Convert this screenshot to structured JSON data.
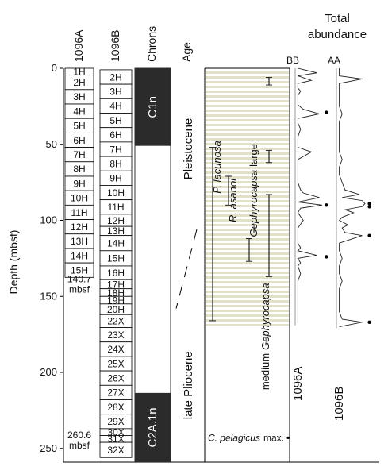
{
  "chart_data": {
    "type": "core-log",
    "y_label": "Depth (mbsf)",
    "ylim": [
      0,
      259
    ],
    "yticks": [
      0,
      50,
      100,
      150,
      200,
      250
    ],
    "column_titles": [
      "1096A",
      "1096B",
      "Chrons",
      "Age"
    ],
    "holes": [
      {
        "name": "1096A",
        "total_depth": {
          "value": 140.7,
          "label": "140.7 mbsf"
        },
        "cores": [
          {
            "label": "1H",
            "top": 0,
            "bottom": 4.5
          },
          {
            "label": "2H",
            "top": 4.5,
            "bottom": 14
          },
          {
            "label": "3H",
            "top": 14,
            "bottom": 23.5
          },
          {
            "label": "4H",
            "top": 23.5,
            "bottom": 33
          },
          {
            "label": "5H",
            "top": 33,
            "bottom": 42.5
          },
          {
            "label": "6H",
            "top": 42.5,
            "bottom": 52
          },
          {
            "label": "7H",
            "top": 52,
            "bottom": 61.5
          },
          {
            "label": "8H",
            "top": 61.5,
            "bottom": 71
          },
          {
            "label": "9H",
            "top": 71,
            "bottom": 80.5
          },
          {
            "label": "10H",
            "top": 80.5,
            "bottom": 90
          },
          {
            "label": "11H",
            "top": 90,
            "bottom": 99.5
          },
          {
            "label": "12H",
            "top": 99.5,
            "bottom": 109
          },
          {
            "label": "13H",
            "top": 109,
            "bottom": 118.5
          },
          {
            "label": "14H",
            "top": 118.5,
            "bottom": 128
          },
          {
            "label": "15H",
            "top": 128,
            "bottom": 137.5
          }
        ]
      },
      {
        "name": "1096B",
        "total_depth": {
          "value": 260.6,
          "label": "260.6 mbsf"
        },
        "cores": [
          {
            "label": "2H",
            "top": 1,
            "bottom": 10.5
          },
          {
            "label": "3H",
            "top": 10.5,
            "bottom": 20
          },
          {
            "label": "4H",
            "top": 20,
            "bottom": 29.5
          },
          {
            "label": "5H",
            "top": 29.5,
            "bottom": 39
          },
          {
            "label": "6H",
            "top": 39,
            "bottom": 48.5
          },
          {
            "label": "7H",
            "top": 48.5,
            "bottom": 58
          },
          {
            "label": "8H",
            "top": 58,
            "bottom": 67.5
          },
          {
            "label": "9H",
            "top": 67.5,
            "bottom": 77
          },
          {
            "label": "10H",
            "top": 77,
            "bottom": 86.5
          },
          {
            "label": "11H",
            "top": 86.5,
            "bottom": 96
          },
          {
            "label": "12H",
            "top": 96,
            "bottom": 104
          },
          {
            "label": "13H",
            "top": 104,
            "bottom": 110
          },
          {
            "label": "14H",
            "top": 110,
            "bottom": 120
          },
          {
            "label": "15H",
            "top": 120,
            "bottom": 130
          },
          {
            "label": "16H",
            "top": 130,
            "bottom": 139
          },
          {
            "label": "17H",
            "top": 139,
            "bottom": 145
          },
          {
            "label": "18H",
            "top": 145,
            "bottom": 150
          },
          {
            "label": "19H",
            "top": 150,
            "bottom": 155
          },
          {
            "label": "20H",
            "top": 155,
            "bottom": 162
          },
          {
            "label": "22X",
            "top": 162,
            "bottom": 170.5
          },
          {
            "label": "23X",
            "top": 170.5,
            "bottom": 180
          },
          {
            "label": "24X",
            "top": 180,
            "bottom": 189.5
          },
          {
            "label": "25X",
            "top": 189.5,
            "bottom": 199
          },
          {
            "label": "26X",
            "top": 199,
            "bottom": 208.5
          },
          {
            "label": "27X",
            "top": 208.5,
            "bottom": 218
          },
          {
            "label": "28X",
            "top": 218,
            "bottom": 227.5
          },
          {
            "label": "29X",
            "top": 227.5,
            "bottom": 237
          },
          {
            "label": "30X",
            "top": 237,
            "bottom": 241.5
          },
          {
            "label": "31X",
            "top": 241.5,
            "bottom": 246
          },
          {
            "label": "32X",
            "top": 246,
            "bottom": 256
          }
        ]
      }
    ],
    "chrons": [
      {
        "name": "C1n",
        "top": 0,
        "bottom": 51
      },
      {
        "name": "C2A.1n",
        "top": 213.5,
        "bottom": 259
      }
    ],
    "ages": [
      "Pleistocene",
      "late Pliocene"
    ],
    "age_boundary": {
      "right_depth": 106,
      "left_depth": 158
    },
    "events": [
      {
        "parts": [
          {
            "text": "P. lacunosa",
            "italic": true
          }
        ],
        "ranges": [
          [
            52,
            166
          ]
        ]
      },
      {
        "parts": [
          {
            "text": "R. asanoi",
            "italic": true
          }
        ],
        "ranges": [
          [
            71,
            90
          ]
        ]
      },
      {
        "parts": [
          {
            "text": "Gephyrocapsa",
            "italic": true
          },
          {
            "text": "large",
            "italic": false
          }
        ],
        "ranges": [
          [
            112,
            127
          ]
        ]
      },
      {
        "parts": [
          {
            "text": "medium",
            "italic": false
          },
          {
            "text": "Gephyrocapsa",
            "italic": true
          }
        ],
        "ranges": [
          [
            6,
            11
          ],
          [
            54,
            62
          ],
          [
            83,
            137
          ]
        ]
      }
    ],
    "pelagicus": {
      "parts": [
        {
          "text": "C. pelagicus",
          "italic": true
        },
        {
          "text": "max.",
          "italic": false
        }
      ],
      "depth": 243
    },
    "abundance_title": "Total abundance",
    "series": [
      {
        "name": "BB",
        "hole": "1096A",
        "depth": [
          0,
          3,
          5,
          8,
          10,
          13,
          15,
          18,
          20,
          24,
          27,
          30,
          33,
          36,
          40,
          45,
          50,
          52,
          55,
          60,
          65,
          70,
          75,
          80,
          82,
          85,
          88,
          90,
          92,
          95,
          100,
          105,
          110,
          115,
          118,
          120,
          123,
          125,
          128,
          130,
          135,
          140,
          145,
          150,
          155,
          160,
          165,
          168
        ],
        "values": [
          1,
          8,
          1,
          6,
          1,
          1,
          2,
          1,
          1,
          1,
          3,
          9,
          1,
          1,
          2,
          1,
          1,
          1,
          6,
          1,
          1,
          1,
          1,
          2,
          3,
          9,
          1,
          10,
          2,
          1,
          3,
          1,
          1,
          1,
          2,
          1,
          8,
          1,
          2,
          1,
          2,
          1,
          1,
          1,
          1,
          1,
          1,
          1
        ],
        "markers": [
          29,
          90,
          124
        ]
      },
      {
        "name": "AA",
        "hole": "1096B",
        "depth": [
          0,
          5,
          7,
          10,
          15,
          20,
          25,
          30,
          35,
          40,
          45,
          50,
          55,
          60,
          65,
          70,
          75,
          80,
          83,
          85,
          87,
          89,
          91,
          93,
          95,
          98,
          100,
          103,
          105,
          108,
          110,
          115,
          120,
          125,
          130,
          135,
          140,
          145,
          150,
          155,
          160,
          165,
          167,
          170
        ],
        "values": [
          1,
          1,
          9,
          1,
          1,
          1,
          1,
          2,
          1,
          1,
          1,
          1,
          1,
          2,
          1,
          1,
          2,
          3,
          8,
          2,
          9,
          10,
          9,
          3,
          6,
          2,
          1,
          4,
          2,
          3,
          9,
          1,
          1,
          2,
          1,
          1,
          2,
          1,
          1,
          1,
          1,
          2,
          9,
          1
        ],
        "markers": [
          89,
          91,
          110,
          167
        ]
      }
    ]
  }
}
